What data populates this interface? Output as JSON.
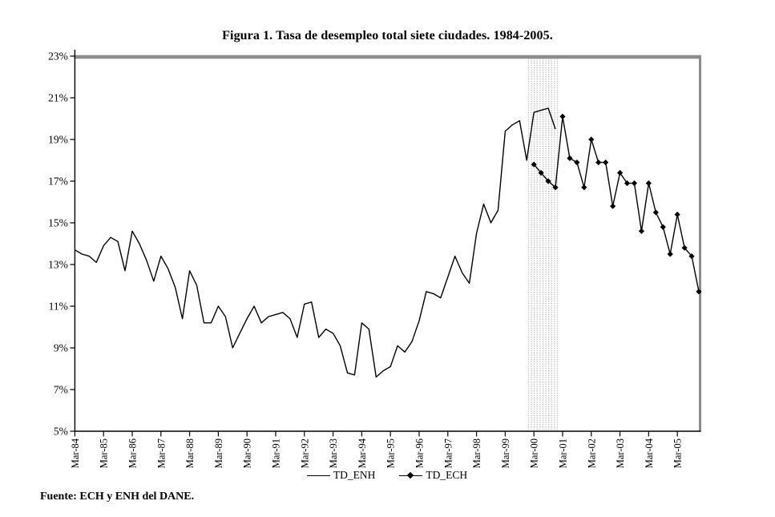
{
  "page": {
    "title": "Figura 1. Tasa de desempleo total siete ciudades. 1984-2005.",
    "source_note": "Fuente: ECH y ENH del DANE."
  },
  "colors": {
    "line": "#000000",
    "frame_gray": "#8c8c8c",
    "band_dot_gray": "#b4b4b4",
    "background": "#ffffff"
  },
  "chart_data": {
    "type": "line",
    "title": "Figura 1. Tasa de desempleo total siete ciudades. 1984-2005.",
    "xlabel": "",
    "ylabel": "",
    "grid": false,
    "x_axis": {
      "unit": "quarter",
      "first_quarter": "Mar-84",
      "last_quarter": "Dec-05",
      "total_quarter_intervals": 87,
      "tick_every_quarters": 4,
      "tick_labels": [
        "Mar-84",
        "Mar-85",
        "Mar-86",
        "Mar-87",
        "Mar-88",
        "Mar-89",
        "Mar-90",
        "Mar-91",
        "Mar-92",
        "Mar-93",
        "Mar-94",
        "Mar-95",
        "Mar-96",
        "Mar-97",
        "Mar-98",
        "Mar-99",
        "Mar-00",
        "Mar-01",
        "Mar-02",
        "Mar-03",
        "Mar-04",
        "Mar-05"
      ]
    },
    "y_axis": {
      "min": 5,
      "max": 23,
      "step": 2,
      "format": "percent",
      "tick_labels": [
        "23%",
        "21%",
        "19%",
        "17%",
        "15%",
        "13%",
        "11%",
        "9%",
        "7%",
        "5%"
      ]
    },
    "legend": {
      "position": "bottom-center",
      "entries": [
        "TD_ENH",
        "TD_ECH"
      ]
    },
    "shaded_band": {
      "style": "gray-dot-pattern",
      "from_quarter_index": 63.2,
      "to_quarter_index": 67.5
    },
    "series": [
      {
        "name": "TD_ENH",
        "marker": "none",
        "color": "#000000",
        "frequency": "quarterly",
        "start": "Mar-84",
        "start_quarter_index": 0,
        "values": [
          13.7,
          13.5,
          13.4,
          13.1,
          13.9,
          14.3,
          14.1,
          12.7,
          14.6,
          14.0,
          13.2,
          12.2,
          13.4,
          12.8,
          11.9,
          10.4,
          12.7,
          12.0,
          10.2,
          10.2,
          11.0,
          10.5,
          9.0,
          9.7,
          10.4,
          11.0,
          10.2,
          10.5,
          10.6,
          10.7,
          10.4,
          9.5,
          11.1,
          11.2,
          9.5,
          9.9,
          9.7,
          9.1,
          7.8,
          7.7,
          10.2,
          9.9,
          7.6,
          7.9,
          8.1,
          9.1,
          8.8,
          9.3,
          10.3,
          11.7,
          11.6,
          11.4,
          12.4,
          13.4,
          12.6,
          12.1,
          14.5,
          15.9,
          15.0,
          15.6,
          19.4,
          19.7,
          19.9,
          18.0,
          20.3,
          20.4,
          20.5,
          19.5
        ]
      },
      {
        "name": "TD_ECH",
        "marker": "diamond",
        "color": "#000000",
        "frequency": "quarterly",
        "start": "Mar-00",
        "start_quarter_index": 64,
        "values": [
          17.8,
          17.4,
          17.0,
          16.7,
          20.1,
          18.1,
          17.9,
          16.7,
          19.0,
          17.9,
          17.9,
          15.8,
          17.4,
          16.9,
          16.9,
          14.6,
          16.9,
          15.5,
          14.8,
          13.5,
          15.4,
          13.8,
          13.4,
          11.7
        ]
      }
    ]
  }
}
